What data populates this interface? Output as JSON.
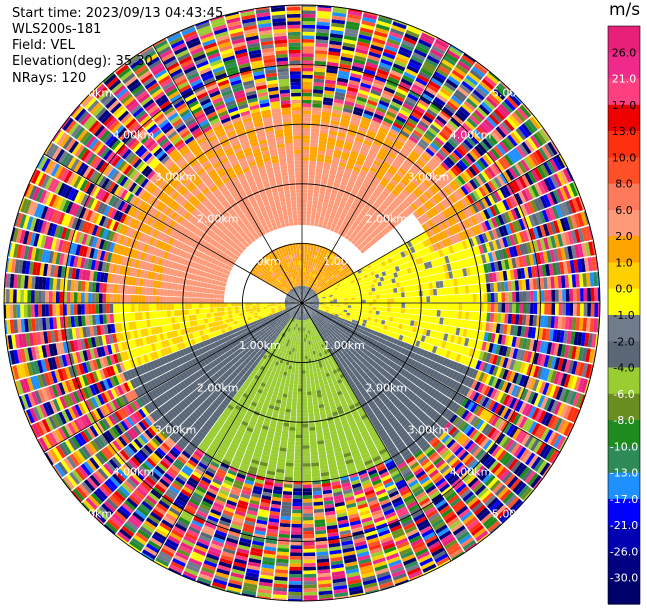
{
  "header": {
    "start_time": "Start time: 2023/09/13 04:43:45",
    "instrument": "WLS200s-181",
    "field": "Field: VEL",
    "elevation": "Elevation(deg): 35.30",
    "nrays": "NRays: 120"
  },
  "chart_data": {
    "type": "heatmap",
    "projection": "polar-ppi",
    "field": "VEL",
    "unit": "m/s",
    "nrays": 120,
    "elevation_deg": 35.3,
    "range_rings_km": [
      1.0,
      2.0,
      3.0,
      4.0,
      5.0
    ],
    "ring_labels": [
      "1.00km",
      "2.00km",
      "3.00km",
      "4.00km",
      "5.00km"
    ],
    "max_range_km": 5.0,
    "spokes_deg": [
      0,
      30,
      60,
      90,
      120,
      150,
      180,
      210,
      240,
      270,
      300,
      330
    ],
    "colorbar": {
      "ticks": [
        26.0,
        21.0,
        17.0,
        13.0,
        10.0,
        8.0,
        6.0,
        2.0,
        1.0,
        0.0,
        -1.0,
        -2.0,
        -4.0,
        -6.0,
        -8.0,
        -10.0,
        -13.0,
        -17.0,
        -21.0,
        -26.0,
        -30.0
      ],
      "tick_labels": [
        "26.0",
        "21.0",
        "17.0",
        "13.0",
        "10.0",
        "8.0",
        "6.0",
        "2.0",
        "1.0",
        "0.0",
        "-1.0",
        "-2.0",
        "-4.0",
        "-6.0",
        "-8.0",
        "-10.0",
        "-13.0",
        "-17.0",
        "-21.0",
        "-26.0",
        "-30.0"
      ],
      "bin_colors": [
        "#e8207a",
        "#f02a8a",
        "#ff3f7f",
        "#ec0000",
        "#ff3010",
        "#ff5028",
        "#ff7a5a",
        "#ff9a78",
        "#ffa500",
        "#ffd000",
        "#ffff00",
        "#707b8b",
        "#5a6777",
        "#9acd32",
        "#6b8e23",
        "#1e8b1e",
        "#2e8b57",
        "#1e90ff",
        "#0000ff",
        "#0000b0",
        "#000080",
        "#00006a"
      ]
    },
    "regions": [
      {
        "name": "near-gate clutter",
        "range_km": [
          0.0,
          0.3
        ],
        "mix": "gray"
      },
      {
        "name": "north 0-1 km",
        "az_deg": [
          300,
          60
        ],
        "range_km": [
          0.3,
          1.0
        ],
        "value": 1.5
      },
      {
        "name": "north 1.3-2.4 km",
        "az_deg": [
          270,
          50
        ],
        "range_km": [
          1.3,
          2.4
        ],
        "value": 4.0
      },
      {
        "name": "north outer",
        "az_deg": [
          270,
          70
        ],
        "range_km": [
          2.4,
          3.3
        ],
        "value": 2.0
      },
      {
        "name": "east",
        "az_deg": [
          60,
          110
        ],
        "range_km": [
          0.3,
          3.1
        ],
        "value": -0.5
      },
      {
        "name": "southeast",
        "az_deg": [
          110,
          150
        ],
        "range_km": [
          0.3,
          3.2
        ],
        "value": -3.0
      },
      {
        "name": "south",
        "az_deg": [
          150,
          215
        ],
        "range_km": [
          0.3,
          3.0
        ],
        "value": -5.5
      },
      {
        "name": "southwest",
        "az_deg": [
          215,
          250
        ],
        "range_km": [
          0.3,
          3.2
        ],
        "value": -3.0
      },
      {
        "name": "west",
        "az_deg": [
          250,
          270
        ],
        "range_km": [
          0.3,
          3.2
        ],
        "value": 0.0
      },
      {
        "name": "far-range noise",
        "range_km": [
          3.0,
          5.0
        ],
        "mix": "random"
      }
    ]
  }
}
